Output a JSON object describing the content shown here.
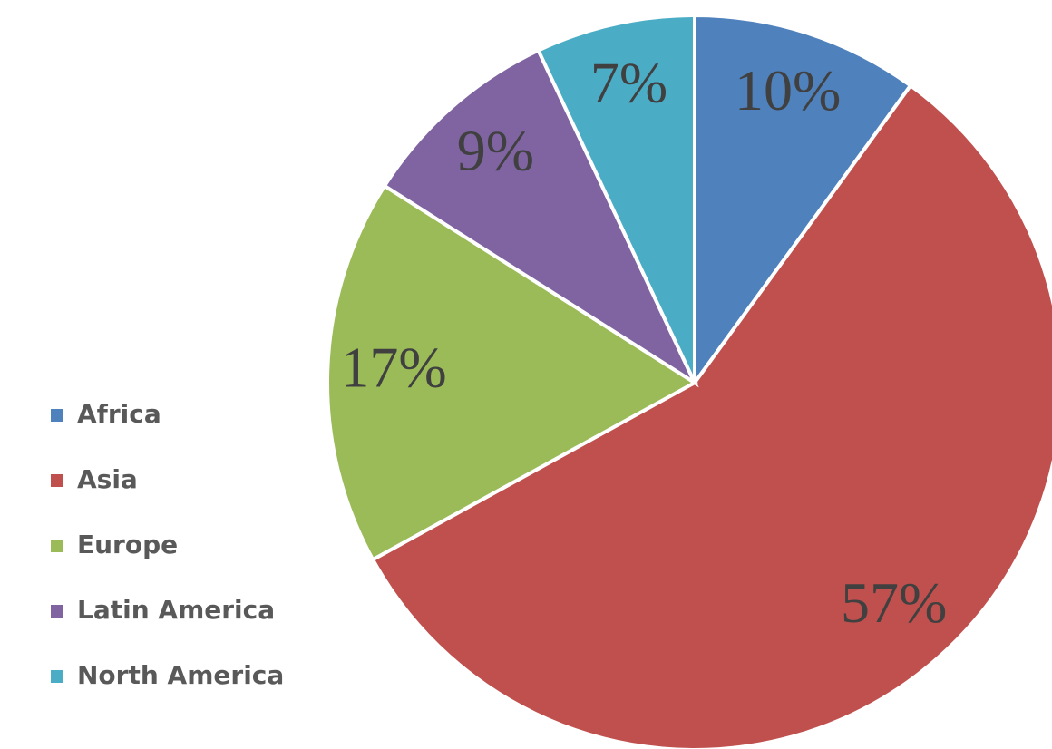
{
  "chart_data": {
    "type": "pie",
    "categories": [
      "Africa",
      "Asia",
      "Europe",
      "Latin America",
      "North America"
    ],
    "values": [
      10,
      57,
      17,
      9,
      7
    ],
    "value_labels": [
      "10%",
      "57%",
      "17%",
      "9%",
      "7%"
    ],
    "colors": [
      "#4f81bd",
      "#c0504d",
      "#9bbb59",
      "#8064a2",
      "#4bacc6"
    ],
    "legend": "left"
  }
}
